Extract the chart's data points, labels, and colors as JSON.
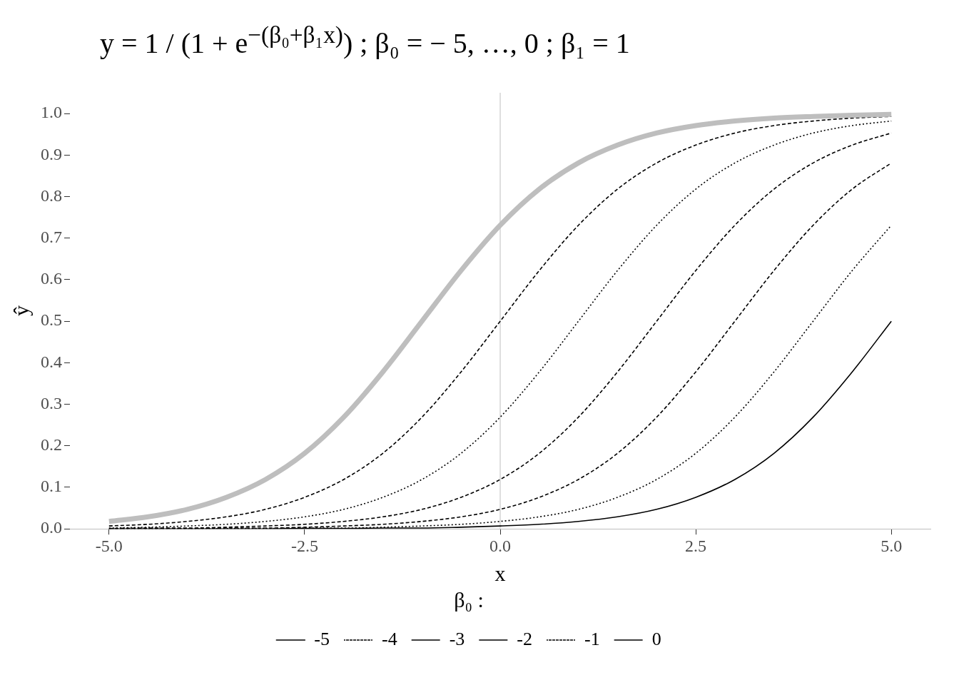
{
  "chart_data": {
    "type": "line",
    "title": "y = 1 / (1 + e$^{−(β₀+β₁x)}$) ; β₀ = − 5, …, 0 ; β₁ = 1",
    "xlabel": "x",
    "ylabel": "ŷ",
    "legend_title": "β₀ :",
    "x": [
      -5,
      -4.5,
      -4,
      -3.5,
      -3,
      -2.5,
      -2,
      -1.5,
      -1,
      -0.5,
      0,
      0.5,
      1,
      1.5,
      2,
      2.5,
      3,
      3.5,
      4,
      4.5,
      5
    ],
    "series": [
      {
        "color": "#bebebe",
        "values": [
          0.018,
          0.029,
          0.047,
          0.076,
          0.119,
          0.182,
          0.269,
          0.378,
          0.5,
          0.622,
          0.731,
          0.818,
          0.881,
          0.924,
          0.953,
          0.971,
          0.982,
          0.989,
          0.993,
          0.996,
          0.998
        ]
      },
      {
        "name": "-5",
        "color": "#000000",
        "line_style": "solid",
        "values": [
          0,
          0,
          0,
          0,
          0,
          0.001,
          0.001,
          0.002,
          0.002,
          0.004,
          0.007,
          0.011,
          0.018,
          0.029,
          0.047,
          0.076,
          0.119,
          0.182,
          0.269,
          0.378,
          0.5
        ]
      },
      {
        "name": "-4",
        "color": "#000000",
        "line_style": "dotted",
        "values": [
          0,
          0,
          0,
          0.001,
          0.001,
          0.002,
          0.002,
          0.004,
          0.007,
          0.011,
          0.018,
          0.029,
          0.047,
          0.076,
          0.119,
          0.182,
          0.269,
          0.378,
          0.5,
          0.622,
          0.731
        ]
      },
      {
        "name": "-3",
        "color": "#000000",
        "line_style": "dashed",
        "values": [
          0,
          0.001,
          0.001,
          0.002,
          0.002,
          0.004,
          0.007,
          0.011,
          0.018,
          0.029,
          0.047,
          0.076,
          0.119,
          0.182,
          0.269,
          0.378,
          0.5,
          0.622,
          0.731,
          0.818,
          0.881
        ]
      },
      {
        "name": "-2",
        "color": "#000000",
        "line_style": "dashed",
        "values": [
          0.001,
          0.002,
          0.002,
          0.004,
          0.007,
          0.011,
          0.018,
          0.029,
          0.047,
          0.076,
          0.119,
          0.182,
          0.269,
          0.378,
          0.5,
          0.622,
          0.731,
          0.818,
          0.881,
          0.924,
          0.953
        ]
      },
      {
        "name": "-1",
        "color": "#000000",
        "line_style": "dotted",
        "values": [
          0.002,
          0.004,
          0.007,
          0.011,
          0.018,
          0.029,
          0.047,
          0.076,
          0.119,
          0.182,
          0.269,
          0.378,
          0.5,
          0.622,
          0.731,
          0.818,
          0.881,
          0.924,
          0.953,
          0.971,
          0.982
        ]
      },
      {
        "name": "0",
        "color": "#000000",
        "line_style": "dashed",
        "values": [
          0.007,
          0.011,
          0.018,
          0.029,
          0.047,
          0.076,
          0.119,
          0.182,
          0.269,
          0.378,
          0.5,
          0.622,
          0.731,
          0.818,
          0.881,
          0.924,
          0.953,
          0.971,
          0.982,
          0.989,
          0.993
        ]
      }
    ],
    "xlim": [
      -5.5,
      5.5
    ],
    "xticks": [
      {
        "value": -5,
        "label": "-5.0"
      },
      {
        "value": -2.5,
        "label": "-2.5"
      },
      {
        "value": 0,
        "label": "0.0"
      },
      {
        "value": 2.5,
        "label": "2.5"
      },
      {
        "value": 5,
        "label": "5.0"
      }
    ],
    "ylim": [
      0,
      1.05
    ],
    "yticks": [
      {
        "value": 0,
        "label": "0.0"
      },
      {
        "value": 0.1,
        "label": "0.1"
      },
      {
        "value": 0.2,
        "label": "0.2"
      },
      {
        "value": 0.3,
        "label": "0.3"
      },
      {
        "value": 0.4,
        "label": "0.4"
      },
      {
        "value": 0.5,
        "label": "0.5"
      },
      {
        "value": 0.6,
        "label": "0.6"
      },
      {
        "value": 0.7,
        "label": "0.7"
      },
      {
        "value": 0.8,
        "label": "0.8"
      },
      {
        "value": 0.9,
        "label": "0.9"
      },
      {
        "value": 1,
        "label": "1.0"
      }
    ],
    "ref_lines": [
      {
        "axis": "x",
        "value": 0,
        "color": "#bebebe"
      }
    ],
    "grid": false,
    "legend": "bottom",
    "marker": "none"
  }
}
